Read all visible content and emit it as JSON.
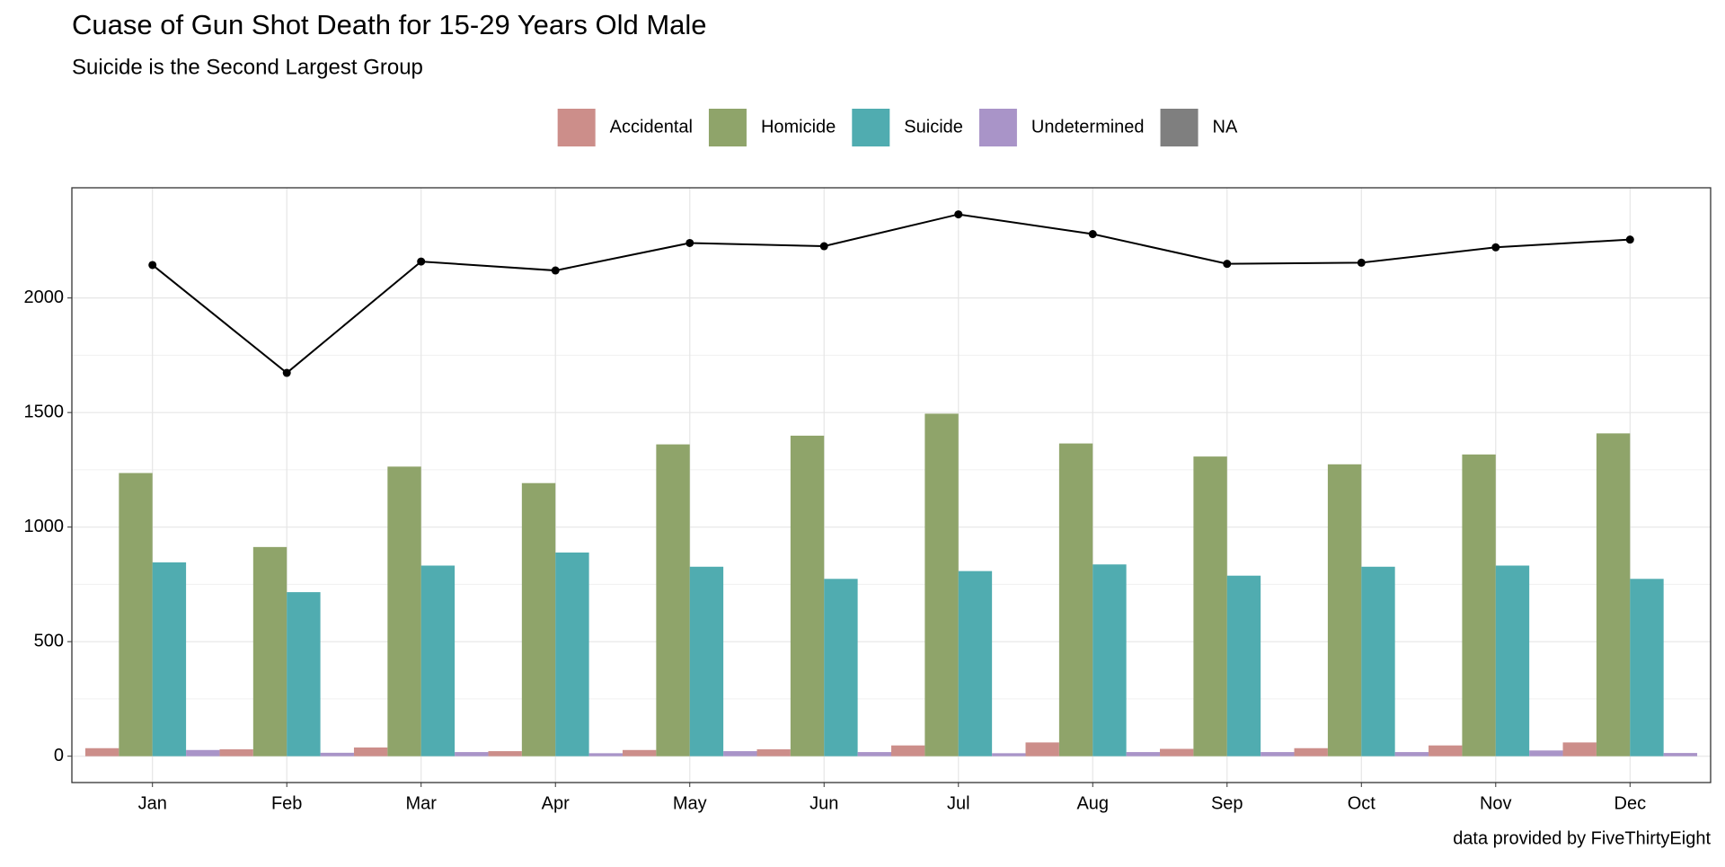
{
  "chart_data": {
    "type": "bar",
    "title": "Cuase of Gun Shot Death for 15-29 Years Old Male",
    "subtitle": "Suicide is the Second Largest Group",
    "caption": "data provided by FiveThirtyEight",
    "categories": [
      "Jan",
      "Feb",
      "Mar",
      "Apr",
      "May",
      "Jun",
      "Jul",
      "Aug",
      "Sep",
      "Oct",
      "Nov",
      "Dec"
    ],
    "series": [
      {
        "name": "Accidental",
        "color": "#cc8e8a",
        "values": [
          35,
          30,
          38,
          22,
          27,
          30,
          47,
          60,
          32,
          35,
          47,
          60
        ]
      },
      {
        "name": "Homicide",
        "color": "#8fa46a",
        "values": [
          1236,
          913,
          1264,
          1192,
          1361,
          1399,
          1495,
          1365,
          1308,
          1274,
          1317,
          1409
        ]
      },
      {
        "name": "Suicide",
        "color": "#50acb0",
        "values": [
          846,
          716,
          832,
          889,
          827,
          774,
          808,
          837,
          788,
          827,
          832,
          774
        ]
      },
      {
        "name": "Undetermined",
        "color": "#a994c8",
        "values": [
          27,
          15,
          18,
          13,
          22,
          18,
          13,
          18,
          18,
          18,
          25,
          14
        ]
      },
      {
        "name": "NA",
        "color": "#7f7f7f",
        "values": [
          null,
          null,
          null,
          null,
          null,
          null,
          null,
          null,
          null,
          null,
          null,
          null
        ]
      }
    ],
    "line": {
      "color": "#000000",
      "values": [
        2144,
        1673,
        2159,
        2120,
        2240,
        2226,
        2365,
        2279,
        2149,
        2154,
        2221,
        2255
      ]
    },
    "ylim": [
      -115,
      2481
    ],
    "yticks": [
      0,
      500,
      1000,
      1500,
      2000
    ],
    "grid": true,
    "legend": "top"
  }
}
